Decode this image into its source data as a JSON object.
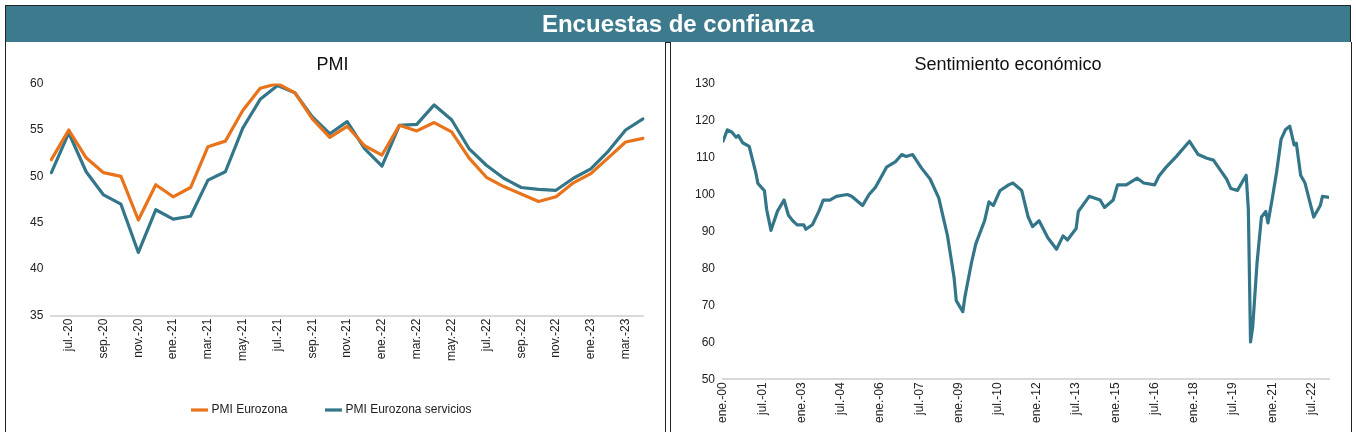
{
  "chart_data": [
    {
      "type": "other",
      "title": "Encuestas de confianza"
    },
    {
      "type": "line",
      "title": "PMI",
      "categories": [
        null,
        "jul.-20",
        null,
        "sep.-20",
        null,
        "nov.-20",
        null,
        "ene.-21",
        null,
        "mar.-21",
        null,
        "may.-21",
        null,
        "jul.-21",
        null,
        "sep.-21",
        null,
        "nov.-21",
        null,
        "ene.-22",
        null,
        "mar.-22",
        null,
        "may.-22",
        null,
        "jul.-22",
        null,
        "sep.-22",
        null,
        "nov.-22",
        null,
        "ene.-23",
        null,
        "mar.-23",
        null
      ],
      "series": [
        {
          "name": "PMI Eurozona",
          "color": "#e8731a",
          "values": [
            51.8,
            55,
            52,
            50.4,
            50,
            45.3,
            49.1,
            47.8,
            48.8,
            53.2,
            53.8,
            57.1,
            59.5,
            60,
            59,
            56.2,
            54.2,
            55.4,
            53.3,
            52.3,
            55.5,
            54.9,
            55.8,
            54.8,
            52,
            49.9,
            48.9,
            48.1,
            47.3,
            47.8,
            49.3,
            50.3,
            52,
            53.7,
            54.1
          ]
        },
        {
          "name": "PMI Eurozona servicios",
          "color": "#337689",
          "values": [
            50.4,
            54.7,
            50.5,
            48,
            47,
            41.8,
            46.4,
            45.4,
            45.7,
            49.6,
            50.5,
            55.2,
            58.3,
            59.8,
            59,
            56.4,
            54.6,
            55.9,
            53,
            51.1,
            55.5,
            55.6,
            57.7,
            56.1,
            53,
            51.2,
            49.8,
            48.8,
            48.6,
            48.5,
            49.8,
            50.8,
            52.7,
            55,
            56.2
          ]
        }
      ],
      "ylim": [
        35,
        60
      ],
      "yticks": [
        35,
        40,
        45,
        50,
        55,
        60
      ],
      "grid": false,
      "legend": "bottom",
      "marker": "none",
      "line_style": "solid"
    },
    {
      "type": "line",
      "title": "Sentimiento económico",
      "x": [
        "2000-01",
        "2000-03",
        "2000-05",
        "2000-07",
        "2000-08",
        "2000-10",
        "2001-01",
        "2001-04",
        "2001-05",
        "2001-08",
        "2001-09",
        "2001-11",
        "2002-02",
        "2002-05",
        "2002-07",
        "2002-09",
        "2002-11",
        "2003-02",
        "2003-03",
        "2003-06",
        "2003-09",
        "2003-11",
        "2004-02",
        "2004-05",
        "2004-10",
        "2004-12",
        "2005-05",
        "2005-08",
        "2005-11",
        "2006-02",
        "2006-04",
        "2006-08",
        "2006-11",
        "2007-01",
        "2007-04",
        "2007-08",
        "2007-12",
        "2008-04",
        "2008-06",
        "2008-08",
        "2008-11",
        "2008-12",
        "2009-03",
        "2009-04",
        "2009-07",
        "2009-09",
        "2010-01",
        "2010-03",
        "2010-05",
        "2010-08",
        "2010-12",
        "2011-02",
        "2011-06",
        "2011-09",
        "2011-11",
        "2012-02",
        "2012-06",
        "2012-10",
        "2013-01",
        "2013-03",
        "2013-07",
        "2013-08",
        "2014-01",
        "2014-06",
        "2014-08",
        "2014-12",
        "2015-02",
        "2015-06",
        "2015-11",
        "2016-02",
        "2016-07",
        "2016-09",
        "2016-12",
        "2017-05",
        "2017-11",
        "2018-03",
        "2018-07",
        "2018-10",
        "2019-01",
        "2019-04",
        "2019-06",
        "2019-09",
        "2020-01",
        "2020-02",
        "2020-03",
        "2020-04",
        "2020-06",
        "2020-08",
        "2020-10",
        "2020-11",
        "2021-01",
        "2021-03",
        "2021-05",
        "2021-07",
        "2021-09",
        "2021-11",
        "2021-12",
        "2022-02",
        "2022-04",
        "2022-06",
        "2022-08",
        "2022-11",
        "2022-12",
        "2023-03"
      ],
      "series": [
        {
          "color": "#337689",
          "values": [
            114.4,
            117.5,
            116.9,
            115.5,
            116,
            114,
            113,
            106,
            103,
            101,
            96,
            90.3,
            95.5,
            98.5,
            94.4,
            92.9,
            91.8,
            91.8,
            90.6,
            91.8,
            95.5,
            98.5,
            98.5,
            99.5,
            100,
            99.5,
            97,
            100,
            102,
            105.2,
            107.4,
            108.8,
            110.8,
            110.3,
            110.8,
            107.2,
            104.2,
            99,
            93.9,
            88.8,
            77.5,
            71.3,
            68.3,
            72.4,
            81.6,
            86.7,
            92.9,
            98,
            97,
            101,
            102.6,
            103.1,
            101.1,
            93.9,
            91.3,
            92.9,
            88.3,
            85.2,
            88.8,
            87.7,
            90.8,
            95.4,
            99.5,
            98.5,
            96.5,
            98.5,
            102.6,
            102.6,
            104.4,
            103.1,
            102.6,
            105,
            107.2,
            110.3,
            114.4,
            110.8,
            109.8,
            109.3,
            106.7,
            104.2,
            101.6,
            101.1,
            105.2,
            96,
            60.1,
            64.2,
            81.6,
            93.9,
            95.4,
            92.3,
            99,
            106.2,
            114.9,
            117.5,
            118.5,
            113.4,
            113.9,
            105.2,
            103.1,
            98.5,
            93.9,
            97,
            99.5,
            99.2
          ]
        }
      ],
      "xlim": [
        "2000-01",
        "2023-03"
      ],
      "xticks": [
        {
          "value": "2000-01",
          "label": "ene.-00"
        },
        {
          "value": "2001-07",
          "label": "jul.-01"
        },
        {
          "value": "2003-01",
          "label": "ene.-03"
        },
        {
          "value": "2004-07",
          "label": "jul.-04"
        },
        {
          "value": "2006-01",
          "label": "ene.-06"
        },
        {
          "value": "2007-07",
          "label": "jul.-07"
        },
        {
          "value": "2009-01",
          "label": "ene.-09"
        },
        {
          "value": "2010-07",
          "label": "jul.-10"
        },
        {
          "value": "2012-01",
          "label": "ene.-12"
        },
        {
          "value": "2013-07",
          "label": "jul.-13"
        },
        {
          "value": "2015-01",
          "label": "ene.-15"
        },
        {
          "value": "2016-07",
          "label": "jul.-16"
        },
        {
          "value": "2018-01",
          "label": "ene.-18"
        },
        {
          "value": "2019-07",
          "label": "jul.-19"
        },
        {
          "value": "2021-01",
          "label": "ene.-21"
        },
        {
          "value": "2022-07",
          "label": "jul.-22"
        }
      ],
      "ylim": [
        50,
        130
      ],
      "yticks": [
        50,
        60,
        70,
        80,
        90,
        100,
        110,
        120,
        130
      ],
      "grid": false,
      "legend": false,
      "marker": "none",
      "line_style": "solid"
    }
  ]
}
